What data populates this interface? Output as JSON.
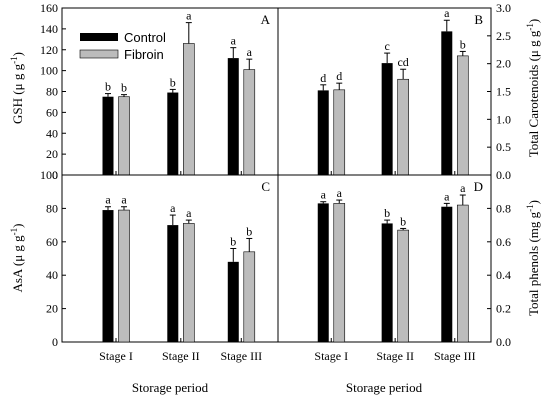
{
  "legend": [
    {
      "name": "Control",
      "color": "#000000"
    },
    {
      "name": "Fibroin",
      "color": "#bcbcbc"
    }
  ],
  "x_title": "Storage period",
  "chart_data": [
    {
      "panel": "A",
      "type": "bar",
      "categories": [
        "Stage I",
        "Stage II",
        "Stage III"
      ],
      "ylabel_main": "GSH",
      "ylabel_unit": "(μ g g",
      "ylabel_sup": "-1",
      "ylabel_close": ")",
      "ylim": [
        0,
        160
      ],
      "yticks": [
        0,
        20,
        40,
        60,
        80,
        100,
        120,
        140,
        160
      ],
      "series": [
        {
          "name": "Control",
          "values": [
            75,
            79,
            112
          ],
          "errors": [
            3,
            3,
            10
          ],
          "letters": [
            "b",
            "b",
            "a"
          ]
        },
        {
          "name": "Fibroin",
          "values": [
            75,
            126,
            101
          ],
          "errors": [
            2,
            20,
            10
          ],
          "letters": [
            "b",
            "a",
            "a"
          ]
        }
      ]
    },
    {
      "panel": "B",
      "type": "bar",
      "categories": [
        "Stage I",
        "Stage II",
        "Stage III"
      ],
      "ylabel_main": "Total Carotenoids",
      "ylabel_unit": "(μ g g",
      "ylabel_sup": "-1",
      "ylabel_close": ")",
      "ylim": [
        0.0,
        3.0
      ],
      "yticks": [
        "0.0",
        "0.5",
        "1.0",
        "1.5",
        "2.0",
        "2.5",
        "3.0"
      ],
      "series": [
        {
          "name": "Control",
          "values": [
            1.52,
            2.01,
            2.58
          ],
          "errors": [
            0.1,
            0.18,
            0.2
          ],
          "letters": [
            "d",
            "c",
            "a"
          ]
        },
        {
          "name": "Fibroin",
          "values": [
            1.53,
            1.72,
            2.14
          ],
          "errors": [
            0.12,
            0.18,
            0.08
          ],
          "letters": [
            "d",
            "cd",
            "b"
          ]
        }
      ]
    },
    {
      "panel": "C",
      "type": "bar",
      "categories": [
        "Stage I",
        "Stage II",
        "Stage III"
      ],
      "xticklabels": [
        "Stage I",
        "Stage II",
        "Stage III"
      ],
      "ylabel_main": "AsA",
      "ylabel_unit": "(μ g g",
      "ylabel_sup": "-1",
      "ylabel_close": ")",
      "ylim": [
        0,
        100
      ],
      "yticks": [
        0,
        20,
        40,
        60,
        80,
        100
      ],
      "series": [
        {
          "name": "Control",
          "values": [
            79,
            70,
            48
          ],
          "errors": [
            2,
            6,
            8
          ],
          "letters": [
            "a",
            "a",
            "b"
          ]
        },
        {
          "name": "Fibroin",
          "values": [
            79,
            71,
            54
          ],
          "errors": [
            2,
            2,
            8
          ],
          "letters": [
            "a",
            "a",
            "b"
          ]
        }
      ]
    },
    {
      "panel": "D",
      "type": "bar",
      "categories": [
        "Stage I",
        "Stage II",
        "Stage III"
      ],
      "xticklabels": [
        "Stage I",
        "Stage II",
        "Stage III"
      ],
      "ylabel_main": "Total phenols",
      "ylabel_unit": "(mg g",
      "ylabel_sup": "-1",
      "ylabel_close": ")",
      "ylim": [
        0.0,
        1.0
      ],
      "yticks": [
        "0.0",
        "0.2",
        "0.4",
        "0.6",
        "0.8"
      ],
      "series": [
        {
          "name": "Control",
          "values": [
            0.83,
            0.71,
            0.81
          ],
          "errors": [
            0.01,
            0.02,
            0.02
          ],
          "letters": [
            "a",
            "b",
            "a"
          ]
        },
        {
          "name": "Fibroin",
          "values": [
            0.83,
            0.67,
            0.82
          ],
          "errors": [
            0.02,
            0.01,
            0.06
          ],
          "letters": [
            "a",
            "b",
            "a"
          ]
        }
      ]
    }
  ]
}
